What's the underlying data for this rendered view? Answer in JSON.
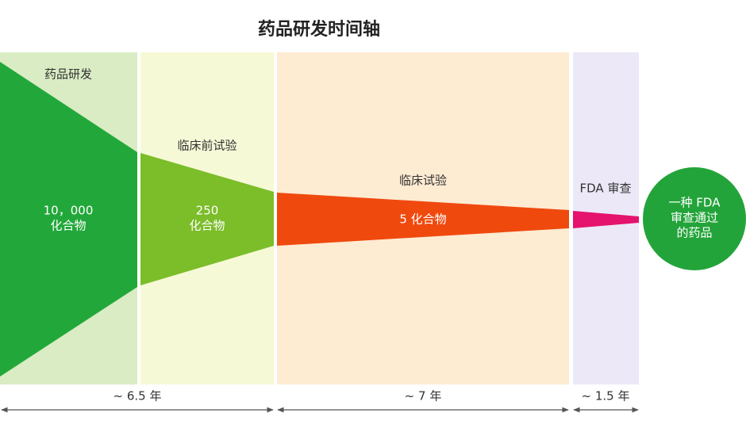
{
  "header": {
    "title": "药品研发时间轴"
  },
  "stages": [
    {
      "label": "药品研发",
      "count": [
        "10，000",
        "化合物"
      ]
    },
    {
      "label": "临床前试验",
      "count": [
        "250",
        "化合物"
      ]
    },
    {
      "label": "临床试验",
      "count": [
        "5 化合物"
      ]
    },
    {
      "label": "FDA 审查"
    }
  ],
  "result": {
    "lines": [
      "一种 FDA",
      "审查通过",
      "的药品"
    ]
  },
  "durations": [
    "~ 6.5 年",
    "~ 7 年",
    "~ 1.5 年"
  ]
}
